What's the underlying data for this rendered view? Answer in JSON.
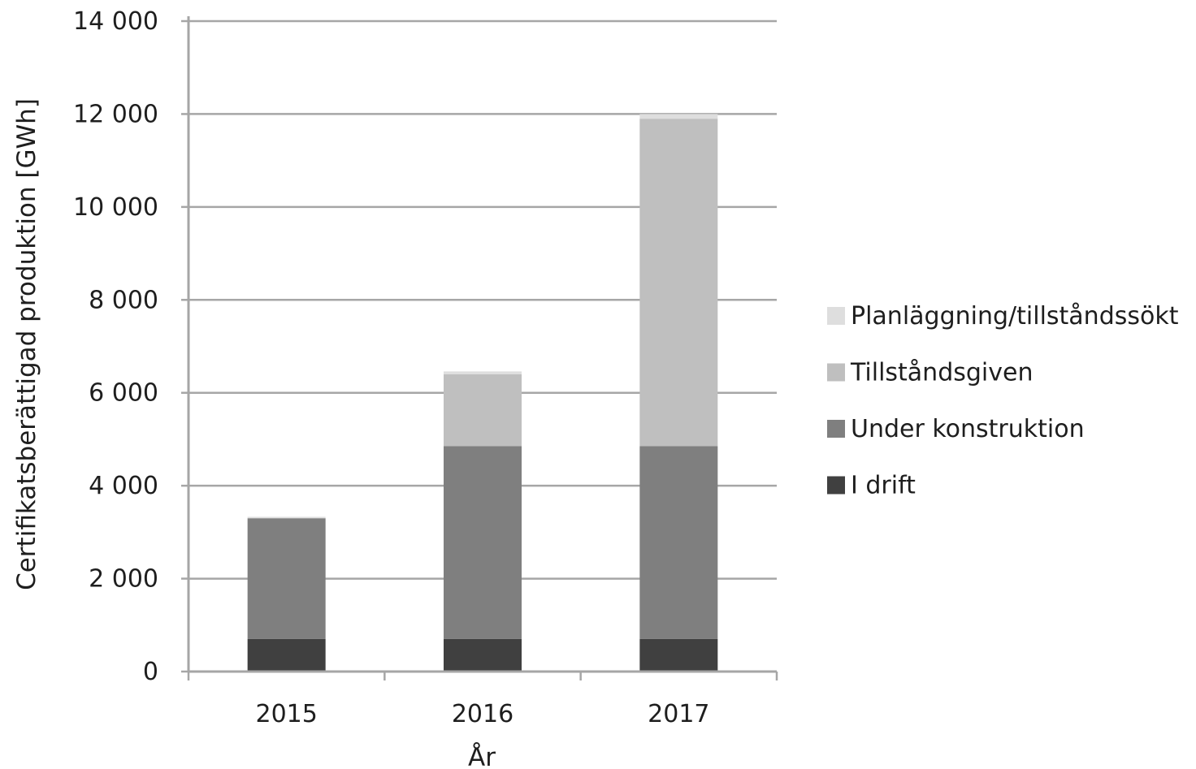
{
  "chart_data": {
    "type": "bar",
    "stacked": true,
    "categories": [
      "2015",
      "2016",
      "2017"
    ],
    "series": [
      {
        "name": "I drift",
        "values": [
          700,
          700,
          700
        ],
        "color": "#404040"
      },
      {
        "name": "Under konstruktion",
        "values": [
          2600,
          4150,
          4150
        ],
        "color": "#7f7f7f"
      },
      {
        "name": "Tillståndsgiven",
        "values": [
          0,
          1550,
          7050
        ],
        "color": "#bfbfbf"
      },
      {
        "name": "Planläggning/tillståndssökt",
        "values": [
          30,
          60,
          100
        ],
        "color": "#dedede"
      }
    ],
    "title": "",
    "xlabel": "År",
    "ylabel": "Certifikatsberättigad produktion [GWh]",
    "ylim": [
      0,
      14000
    ],
    "yticks": [
      0,
      2000,
      4000,
      6000,
      8000,
      10000,
      12000,
      14000
    ],
    "ytick_labels": [
      "0",
      "2 000",
      "4 000",
      "6 000",
      "8 000",
      "10 000",
      "12 000",
      "14 000"
    ],
    "grid": true,
    "legend_position": "right",
    "legend_order": [
      "Planläggning/tillståndssökt",
      "Tillståndsgiven",
      "Under konstruktion",
      "I drift"
    ]
  }
}
